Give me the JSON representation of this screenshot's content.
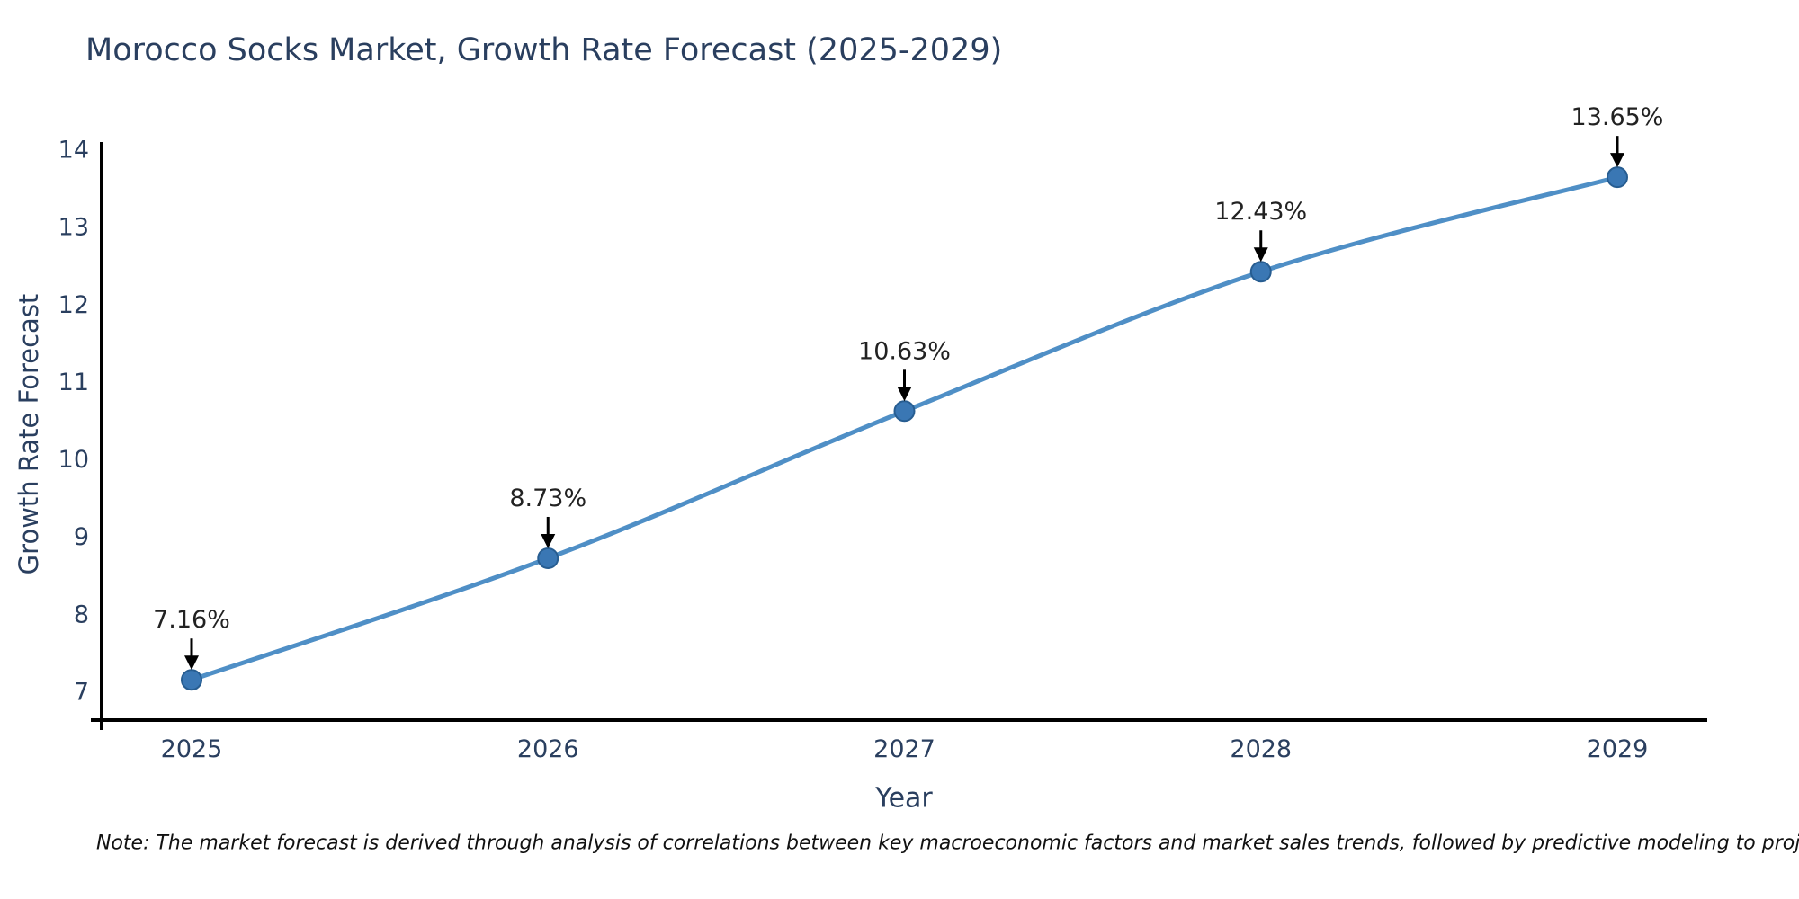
{
  "title": "Morocco Socks Market, Growth Rate Forecast (2025-2029)",
  "note": "Note: The market forecast is derived through analysis of correlations between key macroeconomic factors and market sales trends, followed by predictive modeling to project future sales",
  "chart_data": {
    "type": "line",
    "title": "Morocco Socks Market, Growth Rate Forecast (2025-2029)",
    "xlabel": "Year",
    "ylabel": "Growth Rate Forecast",
    "categories": [
      "2025",
      "2026",
      "2027",
      "2028",
      "2029"
    ],
    "series": [
      {
        "name": "Growth Rate Forecast",
        "values": [
          7.16,
          8.73,
          10.63,
          12.43,
          13.65
        ]
      }
    ],
    "point_labels": [
      "7.16%",
      "8.73%",
      "10.63%",
      "12.43%",
      "13.65%"
    ],
    "yticks": [
      7,
      8,
      9,
      10,
      11,
      12,
      13,
      14
    ],
    "ylim": [
      6.65,
      14.35
    ],
    "grid": false,
    "legend": "none",
    "colors": {
      "line": "#4f8fc6",
      "marker_fill": "#3a77b4",
      "marker_edge": "#275d91",
      "axis_line": "#000000",
      "tick_text": "#2a3f5f",
      "annotation_text": "#222222",
      "arrow": "#000000"
    }
  }
}
